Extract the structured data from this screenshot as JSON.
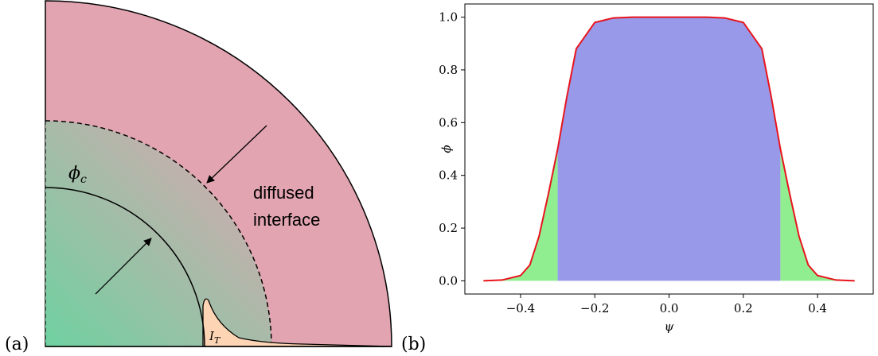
{
  "panel_labels": [
    "(a)",
    "(b)"
  ],
  "diagram": {
    "phi_c": {
      "symbol": "ϕ",
      "subscript": "c"
    },
    "interface_label": [
      "diffused",
      "interface"
    ],
    "i_t": {
      "symbol": "I",
      "subscript": "T"
    }
  },
  "chart_data": {
    "type": "line",
    "x": [
      -0.5,
      -0.45,
      -0.4,
      -0.375,
      -0.35,
      -0.325,
      -0.3,
      -0.275,
      -0.25,
      -0.2,
      -0.15,
      -0.1,
      0,
      0.1,
      0.15,
      0.2,
      0.25,
      0.275,
      0.3,
      0.325,
      0.35,
      0.375,
      0.4,
      0.45,
      0.5
    ],
    "values": [
      0,
      0.003,
      0.02,
      0.06,
      0.17,
      0.33,
      0.5,
      0.7,
      0.88,
      0.98,
      0.997,
      1,
      1,
      1,
      0.997,
      0.98,
      0.88,
      0.7,
      0.5,
      0.33,
      0.17,
      0.06,
      0.02,
      0.003,
      0
    ],
    "color": "#e8141c",
    "fill_colors": {
      "outer": "#90ee90",
      "inner": "#9999ea"
    },
    "fill_split": [
      -0.3,
      0.3
    ],
    "xlabel": "ψ",
    "ylabel": "ϕ",
    "xlim": [
      -0.55,
      0.55
    ],
    "ylim": [
      -0.05,
      1.05
    ],
    "xticks": [
      {
        "value": -0.4,
        "label": "−0.4"
      },
      {
        "value": -0.2,
        "label": "−0.2"
      },
      {
        "value": 0,
        "label": "0.0"
      },
      0.2,
      0.4
    ],
    "yticks": [
      {
        "value": 0,
        "label": "0.0"
      },
      0.2,
      0.4,
      0.6,
      0.8,
      {
        "value": 1,
        "label": "1.0"
      }
    ]
  }
}
